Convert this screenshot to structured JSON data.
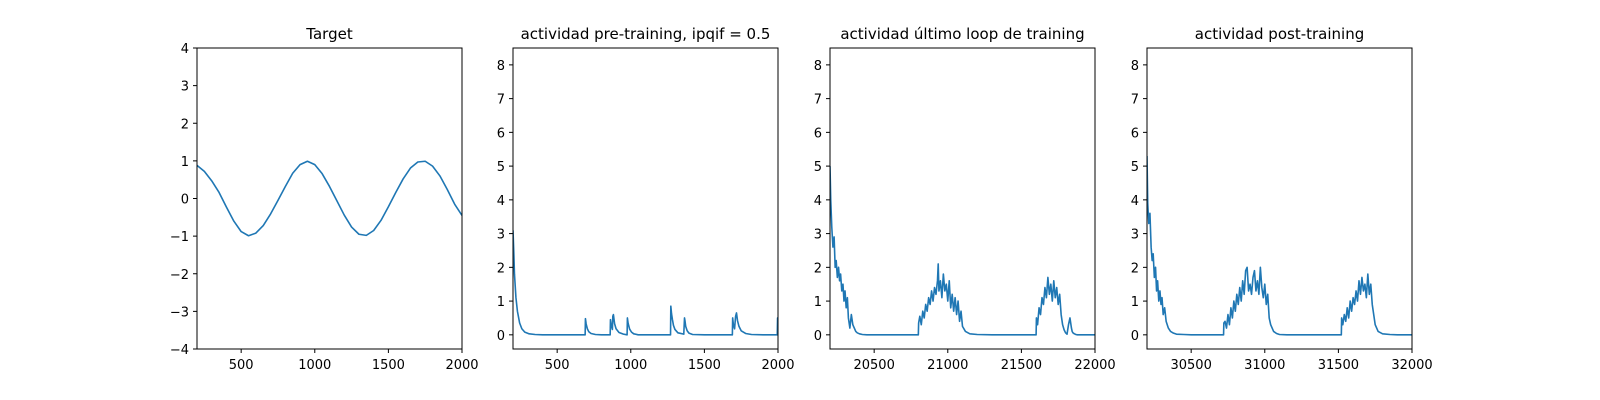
{
  "chart_data": [
    {
      "type": "line",
      "title": "Target",
      "xlim": [
        200,
        2000
      ],
      "ylim": [
        -4,
        4
      ],
      "xticks": [
        500,
        1000,
        1500,
        2000
      ],
      "yticks": [
        -4,
        -3,
        -2,
        -1,
        0,
        1,
        2,
        3,
        4
      ],
      "color": "#1f77b4",
      "series": [
        {
          "x": [
            200,
            250,
            300,
            350,
            400,
            450,
            500,
            550,
            600,
            650,
            700,
            750,
            800,
            850,
            900,
            950,
            1000,
            1050,
            1100,
            1150,
            1200,
            1250,
            1300,
            1350,
            1400,
            1450,
            1500,
            1550,
            1600,
            1650,
            1700,
            1750,
            1800,
            1850,
            1900,
            1950,
            2000
          ],
          "y": [
            0.88,
            0.72,
            0.47,
            0.16,
            -0.23,
            -0.6,
            -0.88,
            -0.99,
            -0.92,
            -0.72,
            -0.41,
            -0.05,
            0.32,
            0.67,
            0.9,
            0.99,
            0.9,
            0.66,
            0.32,
            -0.06,
            -0.44,
            -0.76,
            -0.95,
            -0.98,
            -0.85,
            -0.58,
            -0.22,
            0.16,
            0.52,
            0.81,
            0.97,
            0.99,
            0.86,
            0.6,
            0.24,
            -0.15,
            -0.45
          ]
        }
      ]
    },
    {
      "type": "line",
      "title": "actividad pre-training, ipqif = 0.5",
      "xlim": [
        200,
        2000
      ],
      "ylim": [
        -0.42,
        8.5
      ],
      "xticks": [
        500,
        1000,
        1500,
        2000
      ],
      "yticks": [
        0,
        1,
        2,
        3,
        4,
        5,
        6,
        7,
        8
      ],
      "color": "#1f77b4",
      "series": [
        {
          "x": [
            200,
            205,
            210,
            220,
            230,
            245,
            260,
            280,
            310,
            350,
            400,
            500,
            600,
            690,
            692,
            697,
            705,
            715,
            730,
            760,
            800,
            860,
            862,
            867,
            875,
            878,
            882,
            890,
            900,
            920,
            950,
            975,
            977,
            982,
            992,
            1005,
            1020,
            1050,
            1100,
            1200,
            1270,
            1272,
            1277,
            1283,
            1290,
            1300,
            1320,
            1360,
            1365,
            1368,
            1373,
            1383,
            1395,
            1420,
            1500,
            1600,
            1690,
            1692,
            1697,
            1705,
            1712,
            1718,
            1725,
            1735,
            1750,
            1780,
            1820,
            1900,
            1995,
            1997,
            2000
          ],
          "y": [
            3.1,
            2.5,
            1.8,
            1.1,
            0.7,
            0.35,
            0.18,
            0.08,
            0.03,
            0.01,
            0,
            0,
            0,
            0,
            0.48,
            0.32,
            0.18,
            0.09,
            0.04,
            0.01,
            0,
            0,
            0.45,
            0.28,
            0.16,
            0.55,
            0.6,
            0.33,
            0.18,
            0.07,
            0.02,
            0,
            0.5,
            0.34,
            0.17,
            0.08,
            0.03,
            0,
            0,
            0,
            0,
            0.85,
            0.62,
            0.45,
            0.28,
            0.16,
            0.06,
            0.02,
            0.5,
            0.42,
            0.25,
            0.12,
            0.05,
            0.01,
            0,
            0,
            0,
            0.5,
            0.3,
            0.18,
            0.55,
            0.65,
            0.42,
            0.25,
            0.12,
            0.04,
            0.01,
            0,
            0,
            0.5,
            0.5
          ]
        }
      ]
    },
    {
      "type": "line",
      "title": "actividad último loop de training",
      "xlim": [
        20200,
        22000
      ],
      "ylim": [
        -0.42,
        8.5
      ],
      "xticks": [
        20500,
        21000,
        21500,
        22000
      ],
      "yticks": [
        0,
        1,
        2,
        3,
        4,
        5,
        6,
        7,
        8
      ],
      "color": "#1f77b4",
      "series": [
        {
          "x": [
            20200,
            20205,
            20212,
            20220,
            20228,
            20235,
            20242,
            20250,
            20258,
            20265,
            20272,
            20280,
            20288,
            20295,
            20302,
            20310,
            20318,
            20325,
            20335,
            20345,
            20355,
            20365,
            20375,
            20385,
            20400,
            20420,
            20450,
            20500,
            20600,
            20700,
            20800,
            20802,
            20810,
            20820,
            20830,
            20840,
            20850,
            20860,
            20870,
            20880,
            20890,
            20900,
            20910,
            20920,
            20930,
            20935,
            20940,
            20950,
            20960,
            20970,
            20980,
            20990,
            21000,
            21010,
            21020,
            21030,
            21040,
            21050,
            21060,
            21070,
            21080,
            21090,
            21100,
            21120,
            21150,
            21200,
            21300,
            21400,
            21500,
            21600,
            21602,
            21610,
            21620,
            21630,
            21640,
            21650,
            21660,
            21670,
            21680,
            21690,
            21700,
            21710,
            21720,
            21730,
            21740,
            21750,
            21760,
            21770,
            21780,
            21790,
            21800,
            21810,
            21820,
            21830,
            21840,
            21845,
            21850,
            21860,
            21870,
            21880,
            21890,
            21900,
            21920,
            21950,
            22000
          ],
          "y": [
            5.0,
            4.0,
            3.2,
            2.6,
            2.9,
            2.0,
            2.2,
            1.7,
            2.0,
            1.6,
            1.8,
            1.3,
            1.5,
            1.0,
            1.3,
            0.8,
            1.1,
            0.5,
            0.2,
            0.6,
            0.3,
            0.2,
            0.1,
            0.06,
            0.03,
            0.01,
            0,
            0,
            0,
            0,
            0,
            0.35,
            0.55,
            0.3,
            0.7,
            0.5,
            0.9,
            0.7,
            1.1,
            0.9,
            1.3,
            1.0,
            1.4,
            1.2,
            1.6,
            2.1,
            1.3,
            1.6,
            1.1,
            1.8,
            1.3,
            1.5,
            1.0,
            1.6,
            0.8,
            1.2,
            0.7,
            1.1,
            0.6,
            1.0,
            0.4,
            0.7,
            0.25,
            0.1,
            0.03,
            0.01,
            0,
            0,
            0,
            0,
            0.5,
            0.3,
            0.8,
            0.6,
            1.1,
            0.9,
            1.4,
            1.1,
            1.7,
            1.2,
            1.5,
            1.0,
            1.6,
            1.1,
            1.4,
            0.9,
            1.2,
            0.6,
            0.3,
            0.15,
            0.06,
            0.02,
            0.3,
            0.5,
            0.2,
            0.1,
            0.06,
            0.03,
            0.01,
            0,
            0,
            0,
            0,
            0,
            0
          ]
        }
      ]
    },
    {
      "type": "line",
      "title": "actividad post-training",
      "xlim": [
        30200,
        32000
      ],
      "ylim": [
        -0.42,
        8.5
      ],
      "xticks": [
        30500,
        31000,
        31500,
        32000
      ],
      "yticks": [
        0,
        1,
        2,
        3,
        4,
        5,
        6,
        7,
        8
      ],
      "color": "#1f77b4",
      "series": [
        {
          "x": [
            30200,
            30205,
            30212,
            30220,
            30228,
            30235,
            30242,
            30250,
            30258,
            30265,
            30272,
            30280,
            30288,
            30295,
            30302,
            30310,
            30320,
            30330,
            30345,
            30360,
            30380,
            30400,
            30450,
            30500,
            30600,
            30700,
            30720,
            30722,
            30730,
            30740,
            30750,
            30760,
            30770,
            30780,
            30790,
            30800,
            30810,
            30820,
            30830,
            30840,
            30850,
            30860,
            30870,
            30880,
            30890,
            30900,
            30910,
            30920,
            30930,
            30940,
            30950,
            30960,
            30970,
            30980,
            30990,
            31000,
            31010,
            31020,
            31030,
            31040,
            31060,
            31080,
            31100,
            31150,
            31200,
            31300,
            31400,
            31500,
            31520,
            31522,
            31530,
            31540,
            31550,
            31560,
            31570,
            31580,
            31590,
            31600,
            31610,
            31620,
            31630,
            31640,
            31650,
            31660,
            31670,
            31680,
            31690,
            31700,
            31710,
            31720,
            31730,
            31740,
            31750,
            31770,
            31800,
            31850,
            31900,
            31950,
            32000
          ],
          "y": [
            5.3,
            3.9,
            3.3,
            3.6,
            2.6,
            2.2,
            2.4,
            1.7,
            2.0,
            1.3,
            1.6,
            1.0,
            1.3,
            0.9,
            1.1,
            0.6,
            0.8,
            0.4,
            0.2,
            0.1,
            0.05,
            0.02,
            0.01,
            0,
            0,
            0,
            0,
            0.35,
            0.4,
            0.2,
            0.6,
            0.3,
            0.8,
            0.5,
            1.0,
            0.7,
            1.2,
            0.9,
            1.4,
            1.0,
            1.6,
            1.2,
            1.9,
            2.0,
            1.3,
            1.5,
            1.2,
            1.7,
            1.9,
            1.3,
            1.6,
            1.2,
            2.0,
            1.4,
            1.1,
            1.5,
            0.9,
            1.2,
            0.5,
            0.3,
            0.1,
            0.04,
            0.01,
            0,
            0,
            0,
            0,
            0,
            0,
            0.5,
            0.3,
            0.6,
            0.4,
            0.8,
            0.5,
            1.0,
            0.7,
            1.1,
            0.9,
            1.3,
            1.0,
            1.6,
            1.2,
            1.7,
            1.3,
            1.5,
            1.1,
            1.8,
            1.2,
            1.5,
            0.9,
            0.6,
            0.3,
            0.1,
            0.03,
            0.01,
            0,
            0,
            0
          ]
        }
      ]
    }
  ]
}
